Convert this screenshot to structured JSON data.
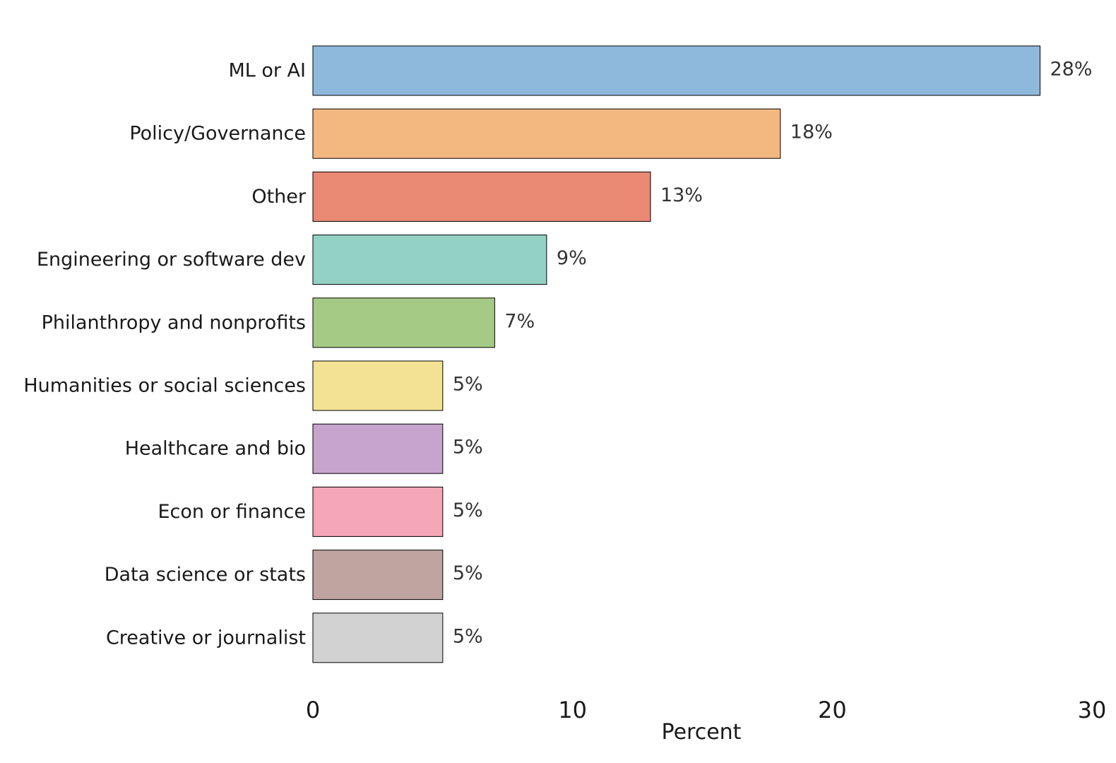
{
  "chart_data": {
    "type": "bar",
    "orientation": "horizontal",
    "title": "",
    "xlabel": "Percent",
    "ylabel": "",
    "xlim": [
      0,
      30
    ],
    "xticks": [
      0,
      10,
      20,
      30
    ],
    "grid": false,
    "legend": "none",
    "categories": [
      "ML or AI",
      "Policy/Governance",
      "Other",
      "Engineering or software dev",
      "Philanthropy and nonprofits",
      "Humanities or social sciences",
      "Healthcare and bio",
      "Econ or finance",
      "Data science or stats",
      "Creative or journalist"
    ],
    "values": [
      28,
      18,
      13,
      9,
      7,
      5,
      5,
      5,
      5,
      5
    ],
    "value_labels": [
      "28%",
      "18%",
      "13%",
      "9%",
      "7%",
      "5%",
      "5%",
      "5%",
      "5%",
      "5%"
    ],
    "colors": [
      "#8fb8dd",
      "#f3b880",
      "#ea8a74",
      "#94d1c5",
      "#a5ca86",
      "#f3e294",
      "#c7a4ce",
      "#f5a6b7",
      "#bfa49f",
      "#d2d2d2"
    ]
  }
}
